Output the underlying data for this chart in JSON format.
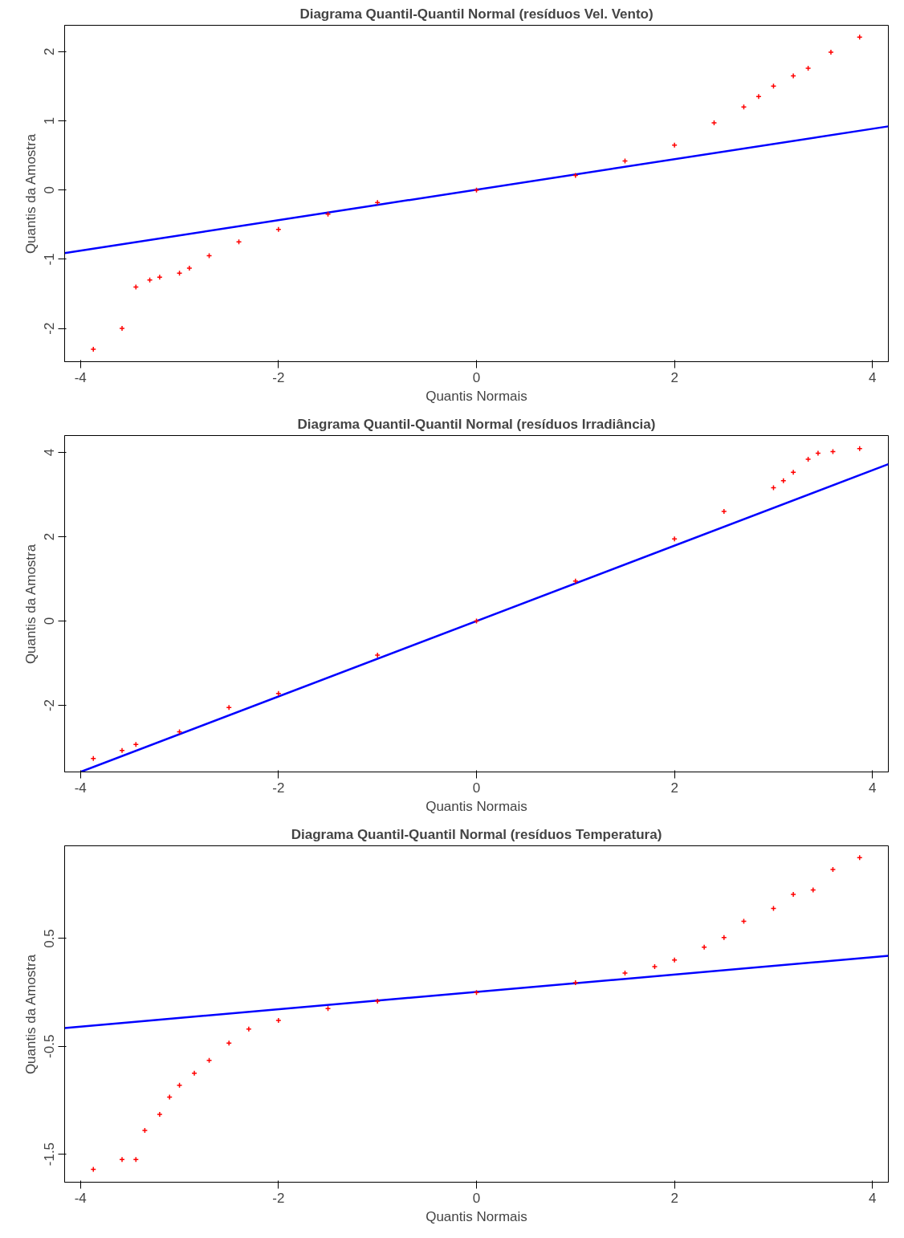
{
  "chart_data": [
    {
      "type": "scatter",
      "title": "Diagrama Quantil-Quantil Normal (resíduos Vel. Vento)",
      "xlabel": "Quantis Normais",
      "ylabel": "Quantis da Amostra",
      "xlim": [
        -4.16,
        4.16
      ],
      "ylim": [
        -2.48,
        2.38
      ],
      "xticks": [
        -4,
        -2,
        0,
        2,
        4
      ],
      "yticks": [
        -2,
        -1,
        0,
        1,
        2
      ],
      "grid": false,
      "series": [
        {
          "marker": "cross",
          "color": "#ff0000",
          "x": [
            -3.87,
            -3.58,
            -3.44,
            -3.3,
            -3.2,
            -3.0,
            -2.9,
            -2.7,
            -2.4,
            -2.0,
            -1.5,
            -1.0,
            0,
            1.0,
            1.5,
            2.0,
            2.4,
            2.7,
            2.85,
            3.0,
            3.2,
            3.35,
            3.58,
            3.87
          ],
          "values": [
            -2.3,
            -2.0,
            -1.4,
            -1.3,
            -1.26,
            -1.2,
            -1.13,
            -0.95,
            -0.75,
            -0.57,
            -0.35,
            -0.18,
            0,
            0.21,
            0.42,
            0.65,
            0.97,
            1.2,
            1.35,
            1.5,
            1.65,
            1.76,
            1.99,
            2.21
          ]
        },
        {
          "type": "line",
          "color": "#0000ff",
          "x": [
            -4.16,
            4.16
          ],
          "values": [
            -0.91,
            0.92
          ]
        }
      ]
    },
    {
      "type": "scatter",
      "title": "Diagrama Quantil-Quantil Normal (resíduos Irradiância)",
      "xlabel": "Quantis Normais",
      "ylabel": "Quantis da Amostra",
      "xlim": [
        -4.16,
        4.16
      ],
      "ylim": [
        -3.58,
        4.4
      ],
      "xticks": [
        -4,
        -2,
        0,
        2,
        4
      ],
      "yticks": [
        -2,
        0,
        2,
        4
      ],
      "grid": false,
      "series": [
        {
          "marker": "cross",
          "color": "#ff0000",
          "x": [
            -3.87,
            -3.58,
            -3.44,
            -3.0,
            -2.5,
            -2.0,
            -1.0,
            0,
            1.0,
            2.0,
            2.5,
            3.0,
            3.1,
            3.2,
            3.35,
            3.45,
            3.6,
            3.87
          ],
          "values": [
            -3.26,
            -3.07,
            -2.93,
            -2.63,
            -2.05,
            -1.72,
            -0.81,
            0,
            0.95,
            1.95,
            2.6,
            3.16,
            3.33,
            3.53,
            3.84,
            3.98,
            4.02,
            4.09
          ]
        },
        {
          "type": "line",
          "color": "#0000ff",
          "x": [
            -4.0,
            4.16
          ],
          "values": [
            -3.58,
            3.72
          ]
        }
      ]
    },
    {
      "type": "scatter",
      "title": "Diagrama Quantil-Quantil Normal (resíduos Temperatura)",
      "xlabel": "Quantis Normais",
      "ylabel": "Quantis da Amostra",
      "xlim": [
        -4.16,
        4.16
      ],
      "ylim": [
        -1.76,
        1.36
      ],
      "xticks": [
        -4,
        -2,
        0,
        2,
        4
      ],
      "yticks": [
        -1.5,
        -0.5,
        0.5
      ],
      "grid": false,
      "series": [
        {
          "marker": "cross",
          "color": "#ff0000",
          "x": [
            -3.87,
            -3.58,
            -3.44,
            -3.35,
            -3.2,
            -3.1,
            -3.0,
            -2.85,
            -2.7,
            -2.5,
            -2.3,
            -2.0,
            -1.5,
            -1.0,
            0,
            1.0,
            1.5,
            1.8,
            2.0,
            2.3,
            2.5,
            2.7,
            3.0,
            3.2,
            3.4,
            3.6,
            3.87
          ],
          "values": [
            -1.64,
            -1.55,
            -1.55,
            -1.28,
            -1.13,
            -0.97,
            -0.86,
            -0.75,
            -0.63,
            -0.47,
            -0.34,
            -0.26,
            -0.15,
            -0.08,
            0,
            0.09,
            0.18,
            0.24,
            0.3,
            0.42,
            0.51,
            0.66,
            0.78,
            0.91,
            0.95,
            1.14,
            1.25
          ]
        },
        {
          "type": "line",
          "color": "#0000ff",
          "x": [
            -4.16,
            4.16
          ],
          "values": [
            -0.33,
            0.34
          ]
        }
      ]
    }
  ]
}
